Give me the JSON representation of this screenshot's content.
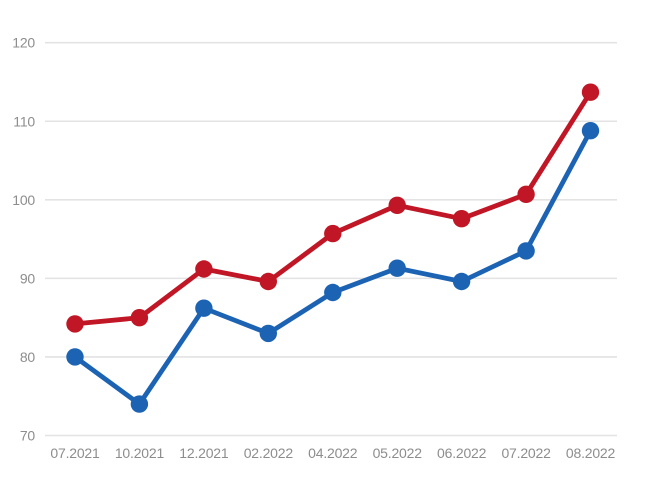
{
  "chart_data": {
    "type": "line",
    "title": "",
    "xlabel": "",
    "ylabel": "",
    "categories": [
      "07.2021",
      "10.2021",
      "12.2021",
      "02.2022",
      "04.2022",
      "05.2022",
      "06.2022",
      "07.2022",
      "08.2022"
    ],
    "series": [
      {
        "name": "red",
        "color": "#c01625",
        "values": [
          84.2,
          85.0,
          91.2,
          89.6,
          95.7,
          99.3,
          97.6,
          100.7,
          113.7
        ]
      },
      {
        "name": "blue",
        "color": "#1c63b3",
        "values": [
          80.0,
          74.0,
          86.2,
          83.0,
          88.2,
          91.3,
          89.6,
          93.5,
          108.8
        ]
      }
    ],
    "ylim": [
      70,
      120
    ],
    "yticks": [
      70,
      80,
      90,
      100,
      110,
      120
    ],
    "grid": "horizontal-only",
    "legend": "none",
    "marker": "filled-circle",
    "colors": {
      "background": "#ffffff",
      "gridline": "#e3e3e3",
      "tick_label": "#8d8d8d"
    }
  }
}
